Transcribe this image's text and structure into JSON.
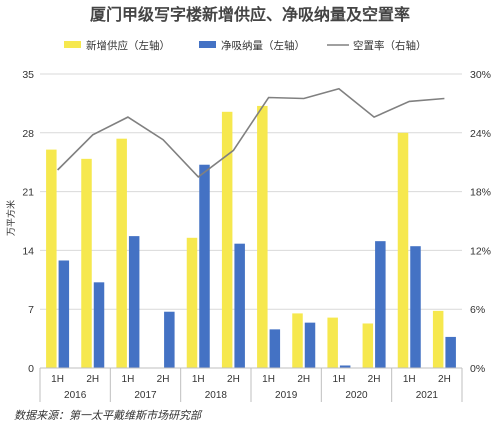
{
  "chart_data": {
    "type": "bar",
    "title": "厦门甲级写字楼新增供应、净吸纳量及空置率",
    "legend": [
      "新增供应（左轴）",
      "净吸纳量（左轴）",
      "空置率（右轴）"
    ],
    "ylabel": "万平方米",
    "source": "数据来源：第一太平戴维斯市场研究部",
    "periods": [
      "1H",
      "2H",
      "1H",
      "2H",
      "1H",
      "2H",
      "1H",
      "2H",
      "1H",
      "2H",
      "1H",
      "2H"
    ],
    "years": [
      "2016",
      "2017",
      "2018",
      "2019",
      "2020",
      "2021"
    ],
    "ylim_left": [
      0,
      35
    ],
    "yticks_left": [
      "0",
      "7",
      "14",
      "21",
      "28",
      "35"
    ],
    "ylim_right": [
      0,
      30
    ],
    "yticks_right": [
      "0%",
      "6%",
      "12%",
      "18%",
      "24%",
      "30%"
    ],
    "series": [
      {
        "name": "新增供应（左轴）",
        "axis": "left",
        "type": "bar",
        "color": "#f6e84e",
        "values": [
          26.0,
          24.9,
          27.3,
          0,
          15.5,
          30.5,
          31.2,
          6.5,
          6.0,
          5.3,
          28.0,
          6.8
        ]
      },
      {
        "name": "净吸纳量（左轴）",
        "axis": "left",
        "type": "bar",
        "color": "#4472c4",
        "values": [
          12.8,
          10.2,
          15.7,
          6.7,
          24.2,
          14.8,
          4.6,
          5.4,
          0.3,
          15.1,
          14.5,
          3.7
        ]
      },
      {
        "name": "空置率（右轴）",
        "axis": "right",
        "type": "line",
        "color": "#808080",
        "values": [
          20.2,
          23.8,
          25.6,
          23.3,
          19.5,
          22.2,
          27.6,
          27.5,
          28.5,
          25.6,
          27.2,
          27.5
        ]
      }
    ]
  }
}
